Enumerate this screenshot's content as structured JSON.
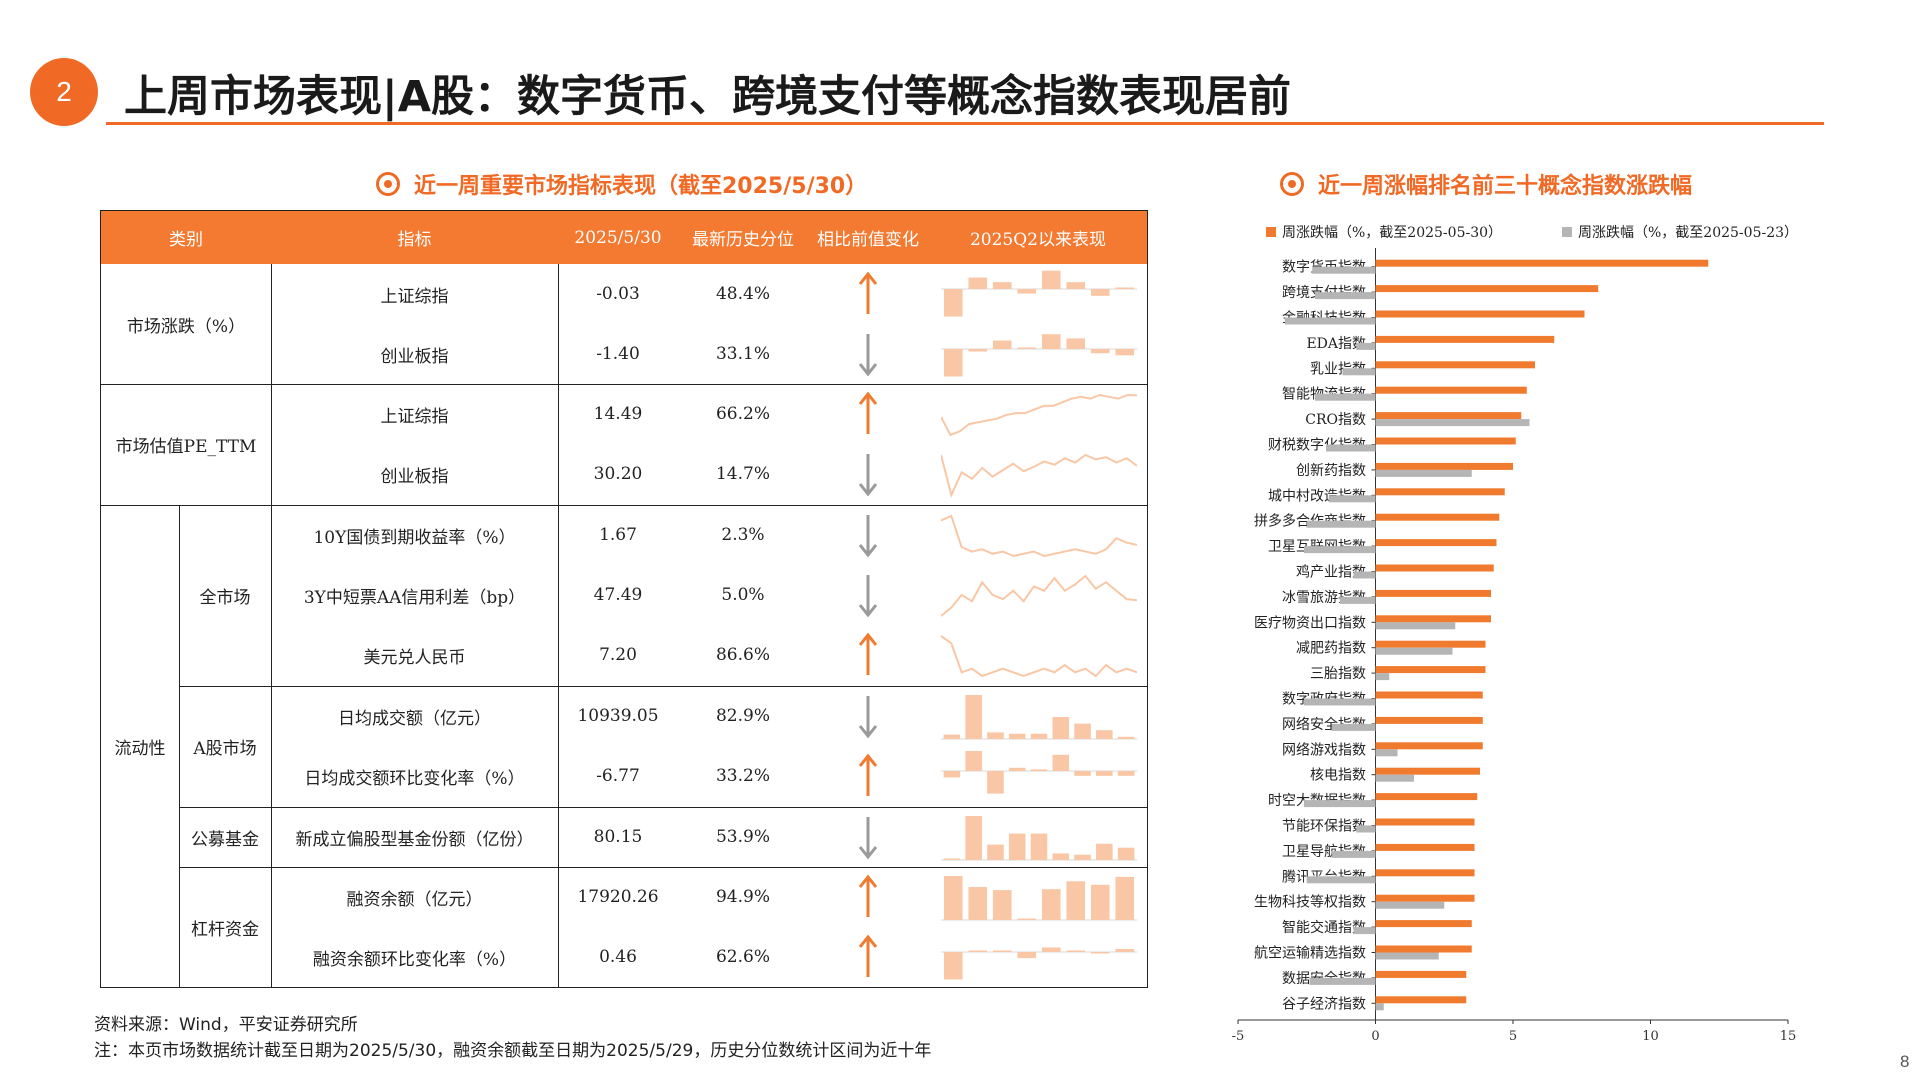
{
  "header": {
    "section_number": "2",
    "title": "上周市场表现|A股：数字货币、跨境支付等概念指数表现居前"
  },
  "left_panel": {
    "subtitle": "近一周重要市场指标表现（截至2025/5/30）",
    "table": {
      "headers": [
        "类别",
        "指标",
        "2025/5/30",
        "最新历史分位",
        "相比前值变化",
        "2025Q2以来表现"
      ],
      "groups": {
        "market_return": "市场涨跌（%）",
        "valuation": "市场估值PE_TTM",
        "liquidity": "流动性",
        "whole_market": "全市场",
        "a_share_market": "A股市场",
        "public_fund": "公募基金",
        "leverage": "杠杆资金"
      },
      "rows": [
        {
          "indicator": "上证综指",
          "value": "-0.03",
          "percentile": "48.4%",
          "direction": "up",
          "spark_type": "bar",
          "spark": [
            -0.6,
            0.25,
            0.15,
            -0.1,
            0.4,
            0.15,
            -0.15,
            0.02
          ]
        },
        {
          "indicator": "创业板指",
          "value": "-1.40",
          "percentile": "33.1%",
          "direction": "down",
          "spark_type": "bar",
          "spark": [
            -1.3,
            -0.12,
            0.4,
            0.05,
            0.7,
            0.5,
            -0.2,
            -0.3
          ]
        },
        {
          "indicator": "上证综指",
          "value": "14.49",
          "percentile": "66.2%",
          "direction": "up",
          "spark_type": "line",
          "spark": [
            13.9,
            13.4,
            13.5,
            13.7,
            13.75,
            13.8,
            13.85,
            13.95,
            14.0,
            14.0,
            14.1,
            14.2,
            14.2,
            14.3,
            14.4,
            14.45,
            14.4,
            14.5,
            14.45,
            14.4,
            14.5,
            14.49
          ]
        },
        {
          "indicator": "创业板指",
          "value": "30.20",
          "percentile": "14.7%",
          "direction": "down",
          "spark_type": "line",
          "spark": [
            31.2,
            27.5,
            29.6,
            29.0,
            30.0,
            29.2,
            29.8,
            30.4,
            29.7,
            30.1,
            30.6,
            30.3,
            30.9,
            30.5,
            31.2,
            30.8,
            31.0,
            30.5,
            30.9,
            30.2
          ]
        },
        {
          "indicator": "10Y国债到期收益率（%）",
          "value": "1.67",
          "percentile": "2.3%",
          "direction": "down",
          "spark_type": "line",
          "spark": [
            1.78,
            1.8,
            1.66,
            1.64,
            1.65,
            1.63,
            1.64,
            1.62,
            1.63,
            1.64,
            1.62,
            1.63,
            1.64,
            1.65,
            1.64,
            1.63,
            1.65,
            1.7,
            1.68,
            1.67
          ]
        },
        {
          "indicator": "3Y中短票AA信用利差（bp）",
          "value": "47.49",
          "percentile": "5.0%",
          "direction": "down",
          "spark_type": "line",
          "spark": [
            40,
            44,
            50,
            47,
            56,
            50,
            48,
            52,
            47,
            54,
            52,
            58,
            52,
            55,
            59,
            53,
            56,
            52,
            48,
            47.5
          ]
        },
        {
          "indicator": "美元兑人民币",
          "value": "7.20",
          "percentile": "86.6%",
          "direction": "up",
          "spark_type": "line",
          "spark": [
            7.3,
            7.28,
            7.2,
            7.21,
            7.19,
            7.2,
            7.21,
            7.2,
            7.19,
            7.2,
            7.21,
            7.2,
            7.22,
            7.2,
            7.21,
            7.19,
            7.22,
            7.2,
            7.21,
            7.2
          ]
        },
        {
          "indicator": "日均成交额（亿元）",
          "value": "10939.05",
          "percentile": "82.9%",
          "direction": "down",
          "spark_type": "bar",
          "spark": [
            0.1,
            1.0,
            0.15,
            0.12,
            0.12,
            0.5,
            0.35,
            0.2,
            0.05
          ]
        },
        {
          "indicator": "日均成交额环比变化率（%）",
          "value": "-6.77",
          "percentile": "33.2%",
          "direction": "up",
          "spark_type": "bar",
          "spark": [
            -0.2,
            0.85,
            -0.7,
            0.1,
            0.05,
            0.5,
            -0.15,
            -0.15,
            -0.15
          ]
        },
        {
          "indicator": "新成立偏股型基金份额（亿份）",
          "value": "80.15",
          "percentile": "53.9%",
          "direction": "down",
          "spark_type": "bar",
          "spark": [
            0.02,
            1.0,
            0.35,
            0.6,
            0.6,
            0.15,
            0.12,
            0.37,
            0.28
          ]
        },
        {
          "indicator": "融资余额（亿元）",
          "value": "17920.26",
          "percentile": "94.9%",
          "direction": "up",
          "spark_type": "bar",
          "spark": [
            1.0,
            0.75,
            0.68,
            0.0,
            0.7,
            0.88,
            0.8,
            0.98
          ]
        },
        {
          "indicator": "融资余额环比变化率（%）",
          "value": "0.46",
          "percentile": "62.6%",
          "direction": "up",
          "spark_type": "bar",
          "spark": [
            -0.9,
            0.05,
            0.05,
            -0.2,
            0.15,
            0.05,
            -0.05,
            0.1
          ]
        }
      ]
    }
  },
  "right_panel": {
    "subtitle": "近一周涨幅排名前三十概念指数涨跌幅"
  },
  "chart_data": {
    "type": "bar",
    "orientation": "horizontal",
    "categories": [
      "数字货币指数",
      "跨境支付指数",
      "金融科技指数",
      "EDA指数",
      "乳业指数",
      "智能物流指数",
      "CRO指数",
      "财税数字化指数",
      "创新药指数",
      "城中村改造指数",
      "拼多多合作商指数",
      "卫星互联网指数",
      "鸡产业指数",
      "冰雪旅游指数",
      "医疗物资出口指数",
      "减肥药指数",
      "三胎指数",
      "数字政府指数",
      "网络安全指数",
      "网络游戏指数",
      "核电指数",
      "时空大数据指数",
      "节能环保指数",
      "卫星导航指数",
      "腾讯平台指数",
      "生物科技等权指数",
      "智能交通指数",
      "航空运输精选指数",
      "数据安全指数",
      "谷子经济指数"
    ],
    "series": [
      {
        "name": "周涨跌幅（%，截至2025-05-30）",
        "color": "#f07a2e",
        "values": [
          12.1,
          8.1,
          7.6,
          6.5,
          5.8,
          5.5,
          5.3,
          5.1,
          5.0,
          4.7,
          4.5,
          4.4,
          4.3,
          4.2,
          4.2,
          4.0,
          4.0,
          3.9,
          3.9,
          3.9,
          3.8,
          3.7,
          3.6,
          3.6,
          3.6,
          3.6,
          3.5,
          3.5,
          3.3,
          3.3
        ]
      },
      {
        "name": "周涨跌幅（%，截至2025-05-23）",
        "color": "#b5b5b5",
        "values": [
          -2.3,
          -2.2,
          -3.3,
          -0.7,
          -1.2,
          -2.2,
          5.6,
          -1.8,
          3.5,
          -1.7,
          -2.5,
          -2.6,
          -0.8,
          -1.3,
          2.9,
          2.8,
          0.5,
          -2.6,
          -1.6,
          0.8,
          1.4,
          -2.6,
          -0.7,
          -1.6,
          -2.5,
          2.5,
          -0.8,
          2.3,
          -2.4,
          0.3
        ]
      }
    ],
    "xlim": [
      -5,
      15
    ],
    "xticks": [
      "-5",
      "0",
      "5",
      "10",
      "15"
    ],
    "legend_position": "top"
  },
  "footer": {
    "source": "资料来源：Wind，平安证券研究所",
    "note": "注：本页市场数据统计截至日期为2025/5/30，融资余额截至日期为2025/5/29，历史分位数统计区间为近十年",
    "page_number": "8"
  },
  "colors": {
    "accent": "#f06a26",
    "bar_light": "#f9c7a5",
    "arrow_up": "#f07a2e",
    "arrow_down": "#9a9a9a"
  }
}
